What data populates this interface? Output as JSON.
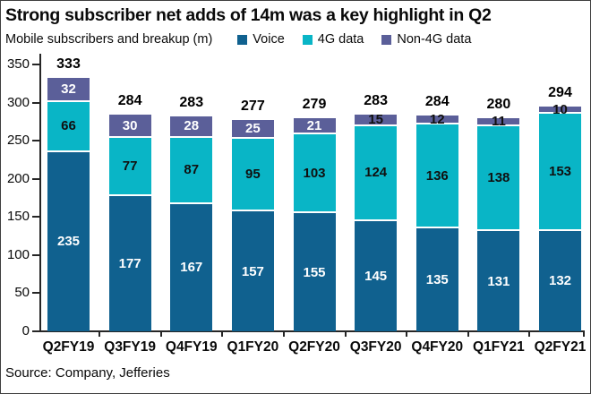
{
  "title": "Strong subscriber net adds of 14m was a key highlight in Q2",
  "subtitle": "Mobile subscribers and breakup (m)",
  "source": "Source: Company, Jefferies",
  "colors": {
    "voice": "#10618f",
    "fourg": "#09b5c6",
    "nonfourg": "#5b5f99",
    "axis": "#262626",
    "text": "#0a0a0a",
    "frame_border": "#3f3f3f",
    "background": "#ffffff"
  },
  "chart_data": {
    "type": "bar",
    "stacked": true,
    "title": "Strong subscriber net adds of 14m was a key highlight in Q2",
    "subtitle": "Mobile subscribers and breakup (m)",
    "categories": [
      "Q2FY19",
      "Q3FY19",
      "Q4FY19",
      "Q1FY20",
      "Q2FY20",
      "Q3FY20",
      "Q4FY20",
      "Q1FY21",
      "Q2FY21"
    ],
    "series": [
      {
        "name": "Voice",
        "color": "#10618f",
        "label_color": "#ffffff",
        "values": [
          235,
          177,
          167,
          157,
          155,
          145,
          135,
          131,
          132
        ]
      },
      {
        "name": "4G data",
        "color": "#09b5c6",
        "label_color": "#101010",
        "values": [
          66,
          77,
          87,
          95,
          103,
          124,
          136,
          138,
          153
        ]
      },
      {
        "name": "Non-4G data",
        "color": "#5b5f99",
        "label_color": "#ffffff",
        "label_color_small": "#101010",
        "small_threshold": 20,
        "values": [
          32,
          30,
          28,
          25,
          21,
          15,
          12,
          11,
          10
        ]
      }
    ],
    "totals": [
      333,
      284,
      283,
      277,
      279,
      283,
      284,
      280,
      294
    ],
    "xlabel": "",
    "ylabel": "",
    "ylim": [
      0,
      350
    ],
    "ytick_step": 50,
    "grid": false,
    "legend_position": "top"
  }
}
